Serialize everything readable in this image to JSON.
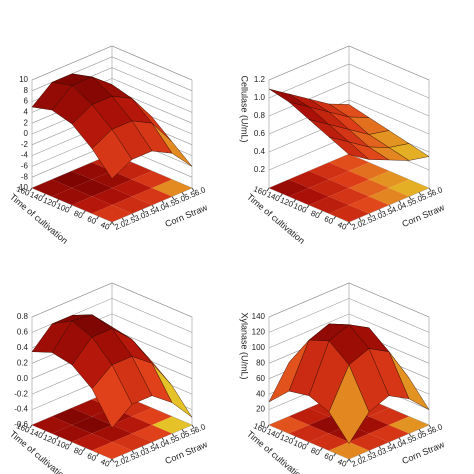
{
  "chart_data": [
    {
      "type": "surface",
      "x_label": "Corn Straw",
      "y_label": "Time of cultivation",
      "x": [
        2,
        3,
        4,
        5,
        6
      ],
      "y": [
        40,
        70,
        100,
        130,
        160
      ],
      "z": [
        [
          -2,
          0,
          0,
          -2,
          -6
        ],
        [
          2,
          4,
          4,
          2,
          -3
        ],
        [
          5,
          7,
          7,
          5,
          0
        ],
        [
          6,
          9,
          9,
          6,
          1
        ],
        [
          5,
          8,
          8,
          5,
          0
        ]
      ],
      "xlim": [
        2,
        6
      ],
      "ylim": [
        40,
        160
      ],
      "zlim": [
        -10,
        10
      ],
      "xticks": [
        {
          "value": 2,
          "label": "2.0"
        },
        2.5,
        {
          "value": 3,
          "label": "3.0"
        },
        3.5,
        {
          "value": 4,
          "label": "4.0"
        },
        4.5,
        {
          "value": 5,
          "label": "5.0"
        },
        5.5,
        {
          "value": 6,
          "label": "6.0"
        }
      ],
      "yticks": [
        40,
        60,
        80,
        100,
        120,
        140,
        160
      ],
      "zticks": [
        -10,
        -8,
        -6,
        -4,
        -2,
        0,
        2,
        4,
        6,
        8,
        10
      ],
      "colormap": [
        "#3aa02a",
        "#e6e62a",
        "#e0401a",
        "#b01208",
        "#6a0000"
      ]
    },
    {
      "type": "surface",
      "x_label": "Corn Straw",
      "y_label": "Time of cultivation",
      "z_label": "Cellulase (U/mL)",
      "x": [
        2,
        3,
        4,
        5,
        6
      ],
      "y": [
        40,
        70,
        100,
        130,
        160
      ],
      "z": [
        [
          0.75,
          0.6,
          0.5,
          0.4,
          0.35
        ],
        [
          0.85,
          0.7,
          0.55,
          0.45,
          0.4
        ],
        [
          0.95,
          0.8,
          0.65,
          0.5,
          0.45
        ],
        [
          1.05,
          0.9,
          0.75,
          0.6,
          0.5
        ],
        [
          1.1,
          0.95,
          0.8,
          0.65,
          0.55
        ]
      ],
      "xlim": [
        2,
        6
      ],
      "ylim": [
        40,
        160
      ],
      "zlim": [
        0,
        1.2
      ],
      "xticks": [
        {
          "value": 2,
          "label": "2.0"
        },
        2.5,
        {
          "value": 3,
          "label": "3.0"
        },
        3.5,
        {
          "value": 4,
          "label": "4.0"
        },
        4.5,
        {
          "value": 5,
          "label": "5.0"
        },
        5.5,
        {
          "value": 6,
          "label": "6.0"
        }
      ],
      "yticks": [
        40,
        60,
        80,
        100,
        120,
        140,
        160
      ],
      "zticks": [
        0.2,
        0.4,
        0.6,
        0.8,
        {
          "value": 1,
          "label": "1.0"
        },
        1.2
      ],
      "colormap": [
        "#3aa02a",
        "#e6e62a",
        "#e0401a",
        "#b01208",
        "#6a0000"
      ]
    },
    {
      "type": "surface",
      "x_label": "Corn Straw",
      "y_label": "Time of cultivation",
      "x": [
        2,
        3,
        4,
        5,
        6
      ],
      "y": [
        40,
        70,
        100,
        130,
        160
      ],
      "z": [
        [
          -0.2,
          0.0,
          0.0,
          -0.2,
          -0.5
        ],
        [
          0.2,
          0.4,
          0.4,
          0.2,
          -0.2
        ],
        [
          0.4,
          0.65,
          0.65,
          0.4,
          0.0
        ],
        [
          0.45,
          0.75,
          0.72,
          0.45,
          0.05
        ],
        [
          0.35,
          0.6,
          0.6,
          0.35,
          0.0
        ]
      ],
      "xlim": [
        2,
        6
      ],
      "ylim": [
        40,
        160
      ],
      "zlim": [
        -0.6,
        0.8
      ],
      "xticks": [
        {
          "value": 2,
          "label": "2.0"
        },
        2.5,
        {
          "value": 3,
          "label": "3.0"
        },
        3.5,
        {
          "value": 4,
          "label": "4.0"
        },
        4.5,
        {
          "value": 5,
          "label": "5.0"
        },
        5.5,
        {
          "value": 6,
          "label": "6.0"
        }
      ],
      "yticks": [
        40,
        60,
        80,
        100,
        120,
        140,
        160
      ],
      "zticks": [
        -0.6,
        -0.4,
        -0.2,
        {
          "value": 0,
          "label": "0.0"
        },
        0.2,
        0.4,
        0.6,
        0.8
      ],
      "colormap": [
        "#3aa02a",
        "#e6e62a",
        "#e0401a",
        "#b01208",
        "#6a0000"
      ]
    },
    {
      "type": "surface",
      "x_label": "Corn Straw",
      "y_label": "Time of cultivation",
      "z_label": "Xylanase (U/mL)",
      "x": [
        2,
        3,
        4,
        5,
        6
      ],
      "y": [
        40,
        70,
        100,
        130,
        160
      ],
      "z": [
        [
          20,
          50,
          60,
          45,
          20
        ],
        [
          50,
          100,
          110,
          95,
          50
        ],
        [
          60,
          120,
          130,
          115,
          60
        ],
        [
          55,
          110,
          120,
          105,
          55
        ],
        [
          30,
          70,
          80,
          65,
          30
        ]
      ],
      "xlim": [
        2,
        6
      ],
      "ylim": [
        40,
        160
      ],
      "zlim": [
        0,
        140
      ],
      "xticks": [
        {
          "value": 2,
          "label": "2.0"
        },
        2.5,
        {
          "value": 3,
          "label": "3.0"
        },
        3.5,
        {
          "value": 4,
          "label": "4.0"
        },
        4.5,
        {
          "value": 5,
          "label": "5.0"
        },
        5.5,
        {
          "value": 6,
          "label": "6.0"
        }
      ],
      "yticks": [
        40,
        60,
        80,
        100,
        120,
        140,
        160
      ],
      "zticks": [
        0,
        20,
        40,
        60,
        80,
        100,
        120,
        140
      ],
      "colormap": [
        "#3aa02a",
        "#e6e62a",
        "#e0401a",
        "#b01208",
        "#6a0000"
      ]
    }
  ]
}
